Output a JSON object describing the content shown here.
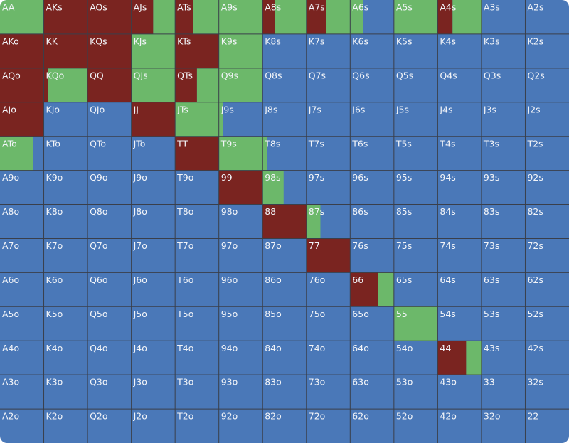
{
  "range_chart": {
    "colors": {
      "raise": "#7a2420",
      "call": "#6cb86a",
      "fold": "#4a78b8",
      "grid": "#3a3f4a"
    },
    "hands": [
      [
        "AA",
        "AKs",
        "AQs",
        "AJs",
        "ATs",
        "A9s",
        "A8s",
        "A7s",
        "A6s",
        "A5s",
        "A4s",
        "A3s",
        "A2s"
      ],
      [
        "AKo",
        "KK",
        "KQs",
        "KJs",
        "KTs",
        "K9s",
        "K8s",
        "K7s",
        "K6s",
        "K5s",
        "K4s",
        "K3s",
        "K2s"
      ],
      [
        "AQo",
        "KQo",
        "QQ",
        "QJs",
        "QTs",
        "Q9s",
        "Q8s",
        "Q7s",
        "Q6s",
        "Q5s",
        "Q4s",
        "Q3s",
        "Q2s"
      ],
      [
        "AJo",
        "KJo",
        "QJo",
        "JJ",
        "JTs",
        "J9s",
        "J8s",
        "J7s",
        "J6s",
        "J5s",
        "J4s",
        "J3s",
        "J2s"
      ],
      [
        "ATo",
        "KTo",
        "QTo",
        "JTo",
        "TT",
        "T9s",
        "T8s",
        "T7s",
        "T6s",
        "T5s",
        "T4s",
        "T3s",
        "T2s"
      ],
      [
        "A9o",
        "K9o",
        "Q9o",
        "J9o",
        "T9o",
        "99",
        "98s",
        "97s",
        "96s",
        "95s",
        "94s",
        "93s",
        "92s"
      ],
      [
        "A8o",
        "K8o",
        "Q8o",
        "J8o",
        "T8o",
        "98o",
        "88",
        "87s",
        "86s",
        "85s",
        "84s",
        "83s",
        "82s"
      ],
      [
        "A7o",
        "K7o",
        "Q7o",
        "J7o",
        "T7o",
        "97o",
        "87o",
        "77",
        "76s",
        "75s",
        "74s",
        "73s",
        "72s"
      ],
      [
        "A6o",
        "K6o",
        "Q6o",
        "J6o",
        "T6o",
        "96o",
        "86o",
        "76o",
        "66",
        "65s",
        "64s",
        "63s",
        "62s"
      ],
      [
        "A5o",
        "K5o",
        "Q5o",
        "J5o",
        "T5o",
        "95o",
        "85o",
        "75o",
        "65o",
        "55",
        "54s",
        "53s",
        "52s"
      ],
      [
        "A4o",
        "K4o",
        "Q4o",
        "J4o",
        "T4o",
        "94o",
        "84o",
        "74o",
        "64o",
        "54o",
        "44",
        "43s",
        "42s"
      ],
      [
        "A3o",
        "K3o",
        "Q3o",
        "J3o",
        "T3o",
        "93o",
        "83o",
        "73o",
        "63o",
        "53o",
        "43o",
        "33",
        "32s"
      ],
      [
        "A2o",
        "K2o",
        "Q2o",
        "J2o",
        "T2o",
        "92o",
        "82o",
        "72o",
        "62o",
        "52o",
        "42o",
        "32o",
        "22"
      ]
    ],
    "raise": [
      [
        0,
        100,
        100,
        50,
        42,
        0,
        28,
        45,
        0,
        0,
        34,
        0,
        0
      ],
      [
        100,
        100,
        100,
        0,
        100,
        0,
        0,
        0,
        0,
        0,
        0,
        0,
        0
      ],
      [
        100,
        10,
        100,
        0,
        50,
        0,
        0,
        0,
        0,
        0,
        0,
        0,
        0
      ],
      [
        100,
        0,
        0,
        100,
        0,
        0,
        0,
        0,
        0,
        0,
        0,
        0,
        0
      ],
      [
        0,
        0,
        0,
        0,
        100,
        0,
        0,
        0,
        0,
        0,
        0,
        0,
        0
      ],
      [
        0,
        0,
        0,
        0,
        0,
        100,
        0,
        0,
        0,
        0,
        0,
        0,
        0
      ],
      [
        0,
        0,
        0,
        0,
        0,
        0,
        100,
        0,
        0,
        0,
        0,
        0,
        0
      ],
      [
        0,
        0,
        0,
        0,
        0,
        0,
        0,
        100,
        0,
        0,
        0,
        0,
        0
      ],
      [
        0,
        0,
        0,
        0,
        0,
        0,
        0,
        0,
        63,
        0,
        0,
        0,
        0
      ],
      [
        0,
        0,
        0,
        0,
        0,
        0,
        0,
        0,
        0,
        0,
        0,
        0,
        0
      ],
      [
        0,
        0,
        0,
        0,
        0,
        0,
        0,
        0,
        0,
        0,
        65,
        0,
        0
      ],
      [
        0,
        0,
        0,
        0,
        0,
        0,
        0,
        0,
        0,
        0,
        0,
        0,
        0
      ],
      [
        0,
        0,
        0,
        0,
        0,
        0,
        0,
        0,
        0,
        0,
        0,
        0,
        0
      ]
    ],
    "call": [
      [
        100,
        0,
        0,
        50,
        58,
        100,
        72,
        55,
        30,
        100,
        66,
        0,
        0
      ],
      [
        0,
        0,
        0,
        100,
        0,
        100,
        0,
        0,
        0,
        0,
        0,
        0,
        0
      ],
      [
        0,
        90,
        0,
        100,
        50,
        100,
        0,
        0,
        0,
        0,
        0,
        0,
        0
      ],
      [
        0,
        0,
        0,
        0,
        100,
        10,
        0,
        0,
        0,
        0,
        0,
        0,
        0
      ],
      [
        75,
        0,
        0,
        0,
        0,
        100,
        10,
        0,
        0,
        0,
        0,
        0,
        0
      ],
      [
        0,
        0,
        0,
        0,
        0,
        0,
        48,
        0,
        0,
        0,
        0,
        0,
        0
      ],
      [
        0,
        0,
        0,
        0,
        0,
        0,
        0,
        32,
        0,
        0,
        0,
        0,
        0
      ],
      [
        0,
        0,
        0,
        0,
        0,
        0,
        0,
        0,
        0,
        0,
        0,
        0,
        0
      ],
      [
        0,
        0,
        0,
        0,
        0,
        0,
        0,
        0,
        37,
        0,
        0,
        0,
        0
      ],
      [
        0,
        0,
        0,
        0,
        0,
        0,
        0,
        0,
        0,
        100,
        0,
        0,
        0
      ],
      [
        0,
        0,
        0,
        0,
        0,
        0,
        0,
        0,
        0,
        0,
        35,
        0,
        0
      ],
      [
        0,
        0,
        0,
        0,
        0,
        0,
        0,
        0,
        0,
        0,
        0,
        0,
        0
      ],
      [
        0,
        0,
        0,
        0,
        0,
        0,
        0,
        0,
        0,
        0,
        0,
        0,
        0
      ]
    ]
  }
}
